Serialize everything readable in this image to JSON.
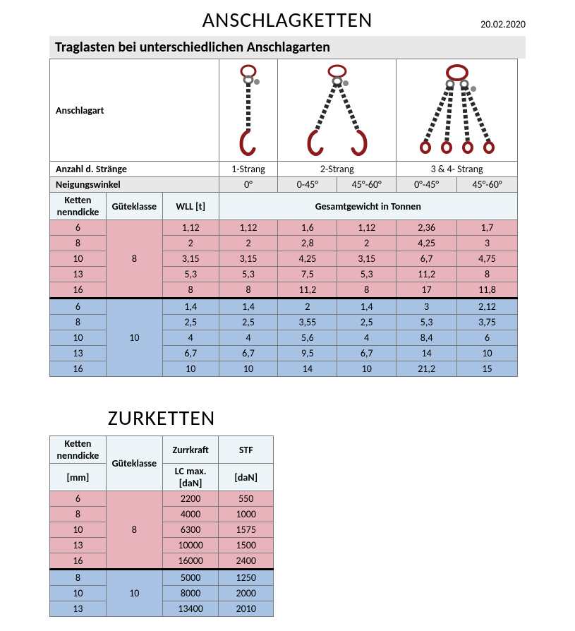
{
  "main_title": "ANSCHLAGKETTEN",
  "date": "20.02.2020",
  "section_title": "Traglasten bei unterschiedlichen Anschlagarten",
  "row_labels": {
    "anschlagart": "Anschlagart",
    "stränge": "Anzahl d. Stränge",
    "neigung": "Neigungswinkel",
    "ketten": "Ketten nenndicke",
    "gueteklasse": "Güteklasse",
    "wll": "WLL [t]",
    "gesamtgewicht": "Gesamtgewicht in Tonnen"
  },
  "strang_labels": [
    "1-Strang",
    "2-Strang",
    "3 & 4- Strang"
  ],
  "angle_labels": [
    "0°",
    "0-45°",
    "45°-60°",
    "0°-45°",
    "45°-60°"
  ],
  "colors": {
    "pink": "#e8b3bb",
    "blue": "#a7c2e3",
    "header_bg": "#eef5f9",
    "grey_bg": "#e8e8e8",
    "border": "#7a7a7a",
    "chain_ring": "#8b1a1a",
    "chain_link": "#2a2a2a"
  },
  "group8": {
    "klasse": "8",
    "rows": [
      {
        "d": "6",
        "wll": "1,12",
        "v": [
          "1,12",
          "1,6",
          "1,12",
          "2,36",
          "1,7"
        ]
      },
      {
        "d": "8",
        "wll": "2",
        "v": [
          "2",
          "2,8",
          "2",
          "4,25",
          "3"
        ]
      },
      {
        "d": "10",
        "wll": "3,15",
        "v": [
          "3,15",
          "4,25",
          "3,15",
          "6,7",
          "4,75"
        ]
      },
      {
        "d": "13",
        "wll": "5,3",
        "v": [
          "5,3",
          "7,5",
          "5,3",
          "11,2",
          "8"
        ]
      },
      {
        "d": "16",
        "wll": "8",
        "v": [
          "8",
          "11,2",
          "8",
          "17",
          "11,8"
        ]
      }
    ]
  },
  "group10": {
    "klasse": "10",
    "rows": [
      {
        "d": "6",
        "wll": "1,4",
        "v": [
          "1,4",
          "2",
          "1,4",
          "3",
          "2,12"
        ]
      },
      {
        "d": "8",
        "wll": "2,5",
        "v": [
          "2,5",
          "3,55",
          "2,5",
          "5,3",
          "3,75"
        ]
      },
      {
        "d": "10",
        "wll": "4",
        "v": [
          "4",
          "5,6",
          "4",
          "8,4",
          "6"
        ]
      },
      {
        "d": "13",
        "wll": "6,7",
        "v": [
          "6,7",
          "9,5",
          "6,7",
          "14",
          "10"
        ]
      },
      {
        "d": "16",
        "wll": "10",
        "v": [
          "10",
          "14",
          "10",
          "21,2",
          "15"
        ]
      }
    ]
  },
  "zurketten": {
    "title": "ZURKETTEN",
    "headers": {
      "ketten": "Ketten nenndicke",
      "mm": "[mm]",
      "gueteklasse": "Güteklasse",
      "zurrkraft": "Zurrkraft",
      "lc": "LC max. [daN]",
      "stf": "STF",
      "dan": "[daN]"
    },
    "group8": {
      "klasse": "8",
      "rows": [
        {
          "d": "6",
          "lc": "2200",
          "stf": "550"
        },
        {
          "d": "8",
          "lc": "4000",
          "stf": "1000"
        },
        {
          "d": "10",
          "lc": "6300",
          "stf": "1575"
        },
        {
          "d": "13",
          "lc": "10000",
          "stf": "1500"
        },
        {
          "d": "16",
          "lc": "16000",
          "stf": "2400"
        }
      ]
    },
    "group10": {
      "klasse": "10",
      "rows": [
        {
          "d": "8",
          "lc": "5000",
          "stf": "1250"
        },
        {
          "d": "10",
          "lc": "8000",
          "stf": "2000"
        },
        {
          "d": "13",
          "lc": "13400",
          "stf": "2010"
        }
      ]
    }
  }
}
